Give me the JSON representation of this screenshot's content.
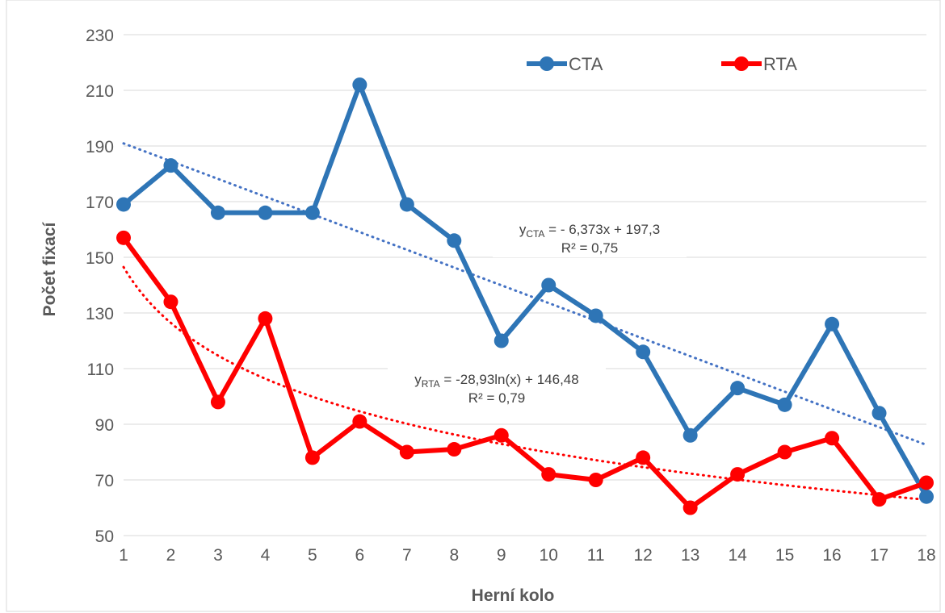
{
  "chart_data": {
    "type": "line",
    "xlabel": "Herní kolo",
    "ylabel": "Počet fixací",
    "x": [
      1,
      2,
      3,
      4,
      5,
      6,
      7,
      8,
      9,
      10,
      11,
      12,
      13,
      14,
      15,
      16,
      17,
      18
    ],
    "ylim": [
      50,
      230
    ],
    "yticks": [
      50,
      70,
      90,
      110,
      130,
      150,
      170,
      190,
      210,
      230
    ],
    "grid": "horizontal",
    "legend_position": "top-right",
    "series": [
      {
        "name": "CTA",
        "color": "#2e75b6",
        "values": [
          169,
          183,
          166,
          166,
          166,
          212,
          169,
          156,
          120,
          140,
          129,
          116,
          86,
          103,
          97,
          126,
          94,
          64
        ]
      },
      {
        "name": "RTA",
        "color": "#ff0000",
        "values": [
          157,
          134,
          98,
          128,
          78,
          91,
          80,
          81,
          86,
          72,
          70,
          78,
          60,
          72,
          80,
          85,
          63,
          69
        ]
      }
    ],
    "trendlines": [
      {
        "series": "CTA",
        "kind": "linear",
        "slope": -6.373,
        "intercept": 197.3,
        "color": "#4472c4",
        "label_y_sub": "CTA",
        "label_eq": "= - 6,373x + 197,3",
        "label_r2": "R² = 0,75"
      },
      {
        "series": "RTA",
        "kind": "log",
        "a": -28.93,
        "b": 146.48,
        "color": "#ff0000",
        "label_y_sub": "RTA",
        "label_eq": "= -28,93ln(x) + 146,48",
        "label_r2": "R² = 0,79"
      }
    ]
  }
}
